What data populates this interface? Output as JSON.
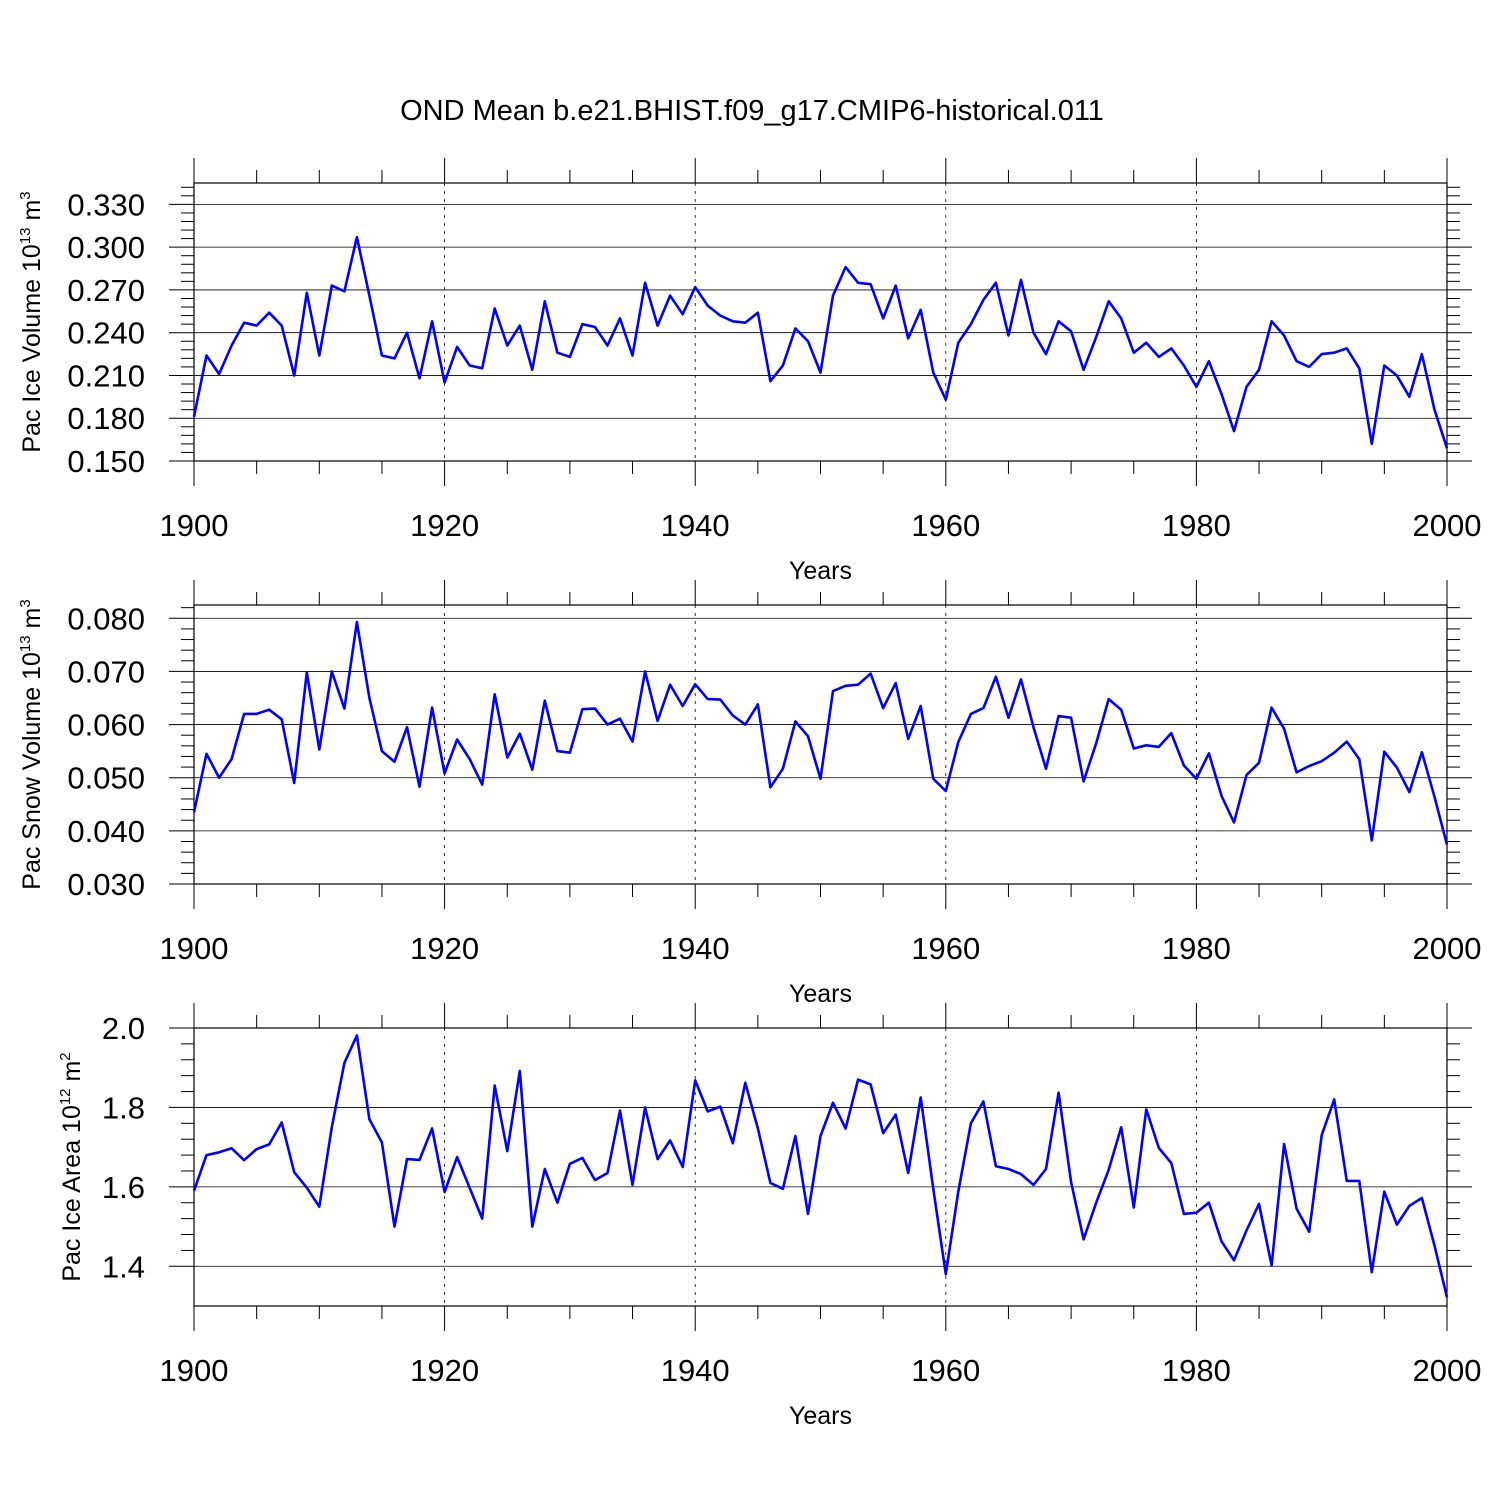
{
  "title": "OND Mean b.e21.BHIST.f09_g17.CMIP6-historical.011",
  "chart_data": [
    {
      "type": "line",
      "title": "OND Mean b.e21.BHIST.f09_g17.CMIP6-historical.011",
      "xlabel": "Years",
      "ylabel": {
        "base": "Pac Ice Volume 10",
        "exp1": "13",
        "mid": " m",
        "exp2": "3"
      },
      "xlim": [
        1900,
        2000
      ],
      "ylim": [
        0.15,
        0.345
      ],
      "x_ticks": [
        "1900",
        "1920",
        "1940",
        "1960",
        "1980",
        "2000"
      ],
      "y_ticks": [
        {
          "value": 0.15,
          "label": "0.150"
        },
        {
          "value": 0.18,
          "label": "0.180"
        },
        {
          "value": 0.21,
          "label": "0.210"
        },
        {
          "value": 0.24,
          "label": "0.240"
        },
        {
          "value": 0.27,
          "label": "0.270"
        },
        {
          "value": 0.3,
          "label": "0.300"
        },
        {
          "value": 0.33,
          "label": "0.330"
        }
      ],
      "series": [
        {
          "name": "Pac Ice Volume",
          "color": "#0000ff",
          "x_start": 1900,
          "values": [
            0.181,
            0.224,
            0.211,
            0.231,
            0.247,
            0.245,
            0.254,
            0.245,
            0.21,
            0.268,
            0.224,
            0.273,
            0.269,
            0.307,
            0.266,
            0.224,
            0.222,
            0.24,
            0.208,
            0.248,
            0.205,
            0.23,
            0.217,
            0.215,
            0.257,
            0.231,
            0.245,
            0.214,
            0.262,
            0.226,
            0.223,
            0.246,
            0.244,
            0.231,
            0.25,
            0.224,
            0.275,
            0.245,
            0.266,
            0.253,
            0.272,
            0.259,
            0.252,
            0.248,
            0.247,
            0.254,
            0.206,
            0.217,
            0.243,
            0.234,
            0.212,
            0.266,
            0.286,
            0.275,
            0.274,
            0.25,
            0.273,
            0.236,
            0.256,
            0.212,
            0.193,
            0.233,
            0.246,
            0.263,
            0.275,
            0.238,
            0.277,
            0.24,
            0.225,
            0.248,
            0.241,
            0.214,
            0.237,
            0.262,
            0.25,
            0.226,
            0.233,
            0.223,
            0.229,
            0.217,
            0.202,
            0.22,
            0.197,
            0.171,
            0.202,
            0.214,
            0.248,
            0.238,
            0.22,
            0.216,
            0.225,
            0.226,
            0.229,
            0.215,
            0.162,
            0.217,
            0.21,
            0.195,
            0.225,
            0.186,
            0.159
          ]
        }
      ]
    },
    {
      "type": "line",
      "title": "",
      "xlabel": "Years",
      "ylabel": {
        "base": "Pac Snow Volume 10",
        "exp1": "13",
        "mid": " m",
        "exp2": "3"
      },
      "xlim": [
        1900,
        2000
      ],
      "ylim": [
        0.03,
        0.0825
      ],
      "x_ticks": [
        "1900",
        "1920",
        "1940",
        "1960",
        "1980",
        "2000"
      ],
      "y_ticks": [
        {
          "value": 0.03,
          "label": "0.030"
        },
        {
          "value": 0.04,
          "label": "0.040"
        },
        {
          "value": 0.05,
          "label": "0.050"
        },
        {
          "value": 0.06,
          "label": "0.060"
        },
        {
          "value": 0.07,
          "label": "0.070"
        },
        {
          "value": 0.08,
          "label": "0.080"
        }
      ],
      "series": [
        {
          "name": "Pac Snow Volume",
          "color": "#0000ff",
          "x_start": 1900,
          "values": [
            0.0435,
            0.0545,
            0.05,
            0.0535,
            0.062,
            0.062,
            0.0628,
            0.061,
            0.049,
            0.0698,
            0.0553,
            0.07,
            0.063,
            0.0793,
            0.065,
            0.055,
            0.053,
            0.0595,
            0.0483,
            0.0632,
            0.0508,
            0.0572,
            0.0535,
            0.0487,
            0.0657,
            0.0538,
            0.0583,
            0.0515,
            0.0645,
            0.055,
            0.0547,
            0.0629,
            0.063,
            0.06,
            0.0611,
            0.0568,
            0.07,
            0.0607,
            0.0675,
            0.0635,
            0.0676,
            0.0648,
            0.0647,
            0.0617,
            0.06,
            0.0638,
            0.0482,
            0.0517,
            0.0606,
            0.0578,
            0.0498,
            0.0663,
            0.0673,
            0.0675,
            0.0696,
            0.0631,
            0.0678,
            0.0573,
            0.0635,
            0.0498,
            0.0475,
            0.0567,
            0.062,
            0.0631,
            0.069,
            0.0613,
            0.0685,
            0.0595,
            0.0517,
            0.0616,
            0.0613,
            0.0493,
            0.0565,
            0.0648,
            0.0628,
            0.0555,
            0.0561,
            0.0558,
            0.0584,
            0.0523,
            0.0498,
            0.0546,
            0.0466,
            0.0416,
            0.0505,
            0.0528,
            0.0632,
            0.0592,
            0.051,
            0.0522,
            0.0531,
            0.0547,
            0.0568,
            0.0535,
            0.0382,
            0.0549,
            0.0519,
            0.0473,
            0.0548,
            0.0464,
            0.0374
          ]
        }
      ]
    },
    {
      "type": "line",
      "title": "",
      "xlabel": "Years",
      "ylabel": {
        "base": "Pac Ice Area 10",
        "exp1": "12",
        "mid": " m",
        "exp2": "2"
      },
      "xlim": [
        1900,
        2000
      ],
      "ylim": [
        1.3,
        2.0
      ],
      "x_ticks": [
        "1900",
        "1920",
        "1940",
        "1960",
        "1980",
        "2000"
      ],
      "y_ticks": [
        {
          "value": 1.4,
          "label": "1.4"
        },
        {
          "value": 1.6,
          "label": "1.6"
        },
        {
          "value": 1.8,
          "label": "1.8"
        },
        {
          "value": 2.0,
          "label": "2.0"
        }
      ],
      "series": [
        {
          "name": "Pac Ice Area",
          "color": "#0000ff",
          "x_start": 1900,
          "values": [
            1.59,
            1.68,
            1.687,
            1.697,
            1.667,
            1.695,
            1.707,
            1.762,
            1.637,
            1.598,
            1.55,
            1.75,
            1.912,
            1.981,
            1.77,
            1.712,
            1.5,
            1.67,
            1.668,
            1.747,
            1.587,
            1.675,
            1.597,
            1.52,
            1.855,
            1.69,
            1.892,
            1.5,
            1.645,
            1.56,
            1.658,
            1.673,
            1.617,
            1.635,
            1.792,
            1.605,
            1.8,
            1.67,
            1.717,
            1.65,
            1.868,
            1.79,
            1.802,
            1.71,
            1.862,
            1.747,
            1.61,
            1.595,
            1.728,
            1.532,
            1.728,
            1.812,
            1.747,
            1.87,
            1.858,
            1.735,
            1.782,
            1.635,
            1.825,
            1.595,
            1.38,
            1.588,
            1.76,
            1.815,
            1.652,
            1.645,
            1.632,
            1.605,
            1.645,
            1.837,
            1.612,
            1.468,
            1.56,
            1.643,
            1.75,
            1.548,
            1.795,
            1.698,
            1.66,
            1.532,
            1.535,
            1.56,
            1.463,
            1.415,
            1.49,
            1.557,
            1.402,
            1.708,
            1.545,
            1.487,
            1.73,
            1.82,
            1.615,
            1.615,
            1.385,
            1.588,
            1.505,
            1.552,
            1.572,
            1.452,
            1.322
          ]
        }
      ]
    }
  ]
}
